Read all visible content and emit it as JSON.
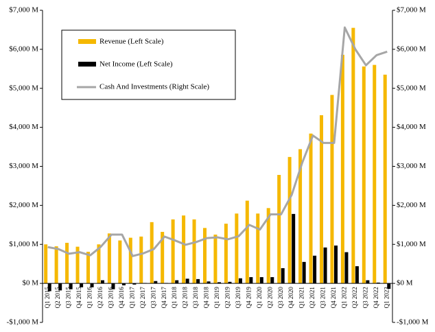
{
  "chart_data": {
    "type": "bar",
    "categories": [
      "Q1 2015",
      "Q2 2015",
      "Q3 2015",
      "Q4 2015",
      "Q1 2016",
      "Q2 2016",
      "Q3 2016",
      "Q4 2016",
      "Q1 2017",
      "Q2 2017",
      "Q3 2017",
      "Q4 2017",
      "Q1 2018",
      "Q2 2018",
      "Q3 2018",
      "Q4 2018",
      "Q1 2019",
      "Q2 2019",
      "Q3 2019",
      "Q4 2019",
      "Q1 2020",
      "Q2 2020",
      "Q3 2020",
      "Q4 2020",
      "Q1 2021",
      "Q2 2021",
      "Q3 2021",
      "Q4 2021",
      "Q1 2022",
      "Q2 2022",
      "Q3 2022",
      "Q4 2022",
      "Q1 2023"
    ],
    "series": [
      {
        "name": "Revenue (Left Scale)",
        "type": "bar",
        "color": "#f5b800",
        "values": [
          1000,
          950,
          1040,
          940,
          810,
          1000,
          1280,
          1100,
          1170,
          1200,
          1570,
          1320,
          1640,
          1740,
          1640,
          1420,
          1250,
          1530,
          1790,
          2120,
          1790,
          1930,
          2780,
          3240,
          3440,
          3840,
          4310,
          4830,
          5860,
          6550,
          5560,
          5600,
          5350
        ]
      },
      {
        "name": "Net Income (Left Scale)",
        "type": "bar",
        "color": "#000000",
        "values": [
          -200,
          -180,
          -150,
          -100,
          -100,
          80,
          -150,
          -50,
          -30,
          10,
          60,
          10,
          80,
          120,
          110,
          50,
          30,
          40,
          130,
          160,
          160,
          160,
          390,
          1780,
          550,
          710,
          920,
          970,
          800,
          440,
          80,
          20,
          -140
        ]
      },
      {
        "name": "Cash And Investments (Right Scale)",
        "type": "line",
        "axis": "y2",
        "color": "#a6a6a6",
        "values": [
          930,
          880,
          760,
          800,
          720,
          940,
          1250,
          1250,
          700,
          770,
          880,
          1200,
          1100,
          990,
          1060,
          1160,
          1180,
          1130,
          1210,
          1500,
          1380,
          1770,
          1770,
          2270,
          3100,
          3790,
          3600,
          3600,
          6560,
          6000,
          5590,
          5850,
          5940
        ]
      }
    ],
    "ylim": [
      -1000,
      7000
    ],
    "yticks": [
      {
        "value": -1000,
        "label": "-$1,000 M"
      },
      {
        "value": 0,
        "label": "$0 M"
      },
      {
        "value": 1000,
        "label": "$1,000 M"
      },
      {
        "value": 2000,
        "label": "$2,000 M"
      },
      {
        "value": 3000,
        "label": "$3,000 M"
      },
      {
        "value": 4000,
        "label": "$4,000 M"
      },
      {
        "value": 5000,
        "label": "$5,000 M"
      },
      {
        "value": 6000,
        "label": "$6,000 M"
      },
      {
        "value": 7000,
        "label": "$7,000 M"
      }
    ],
    "y2lim": [
      -1000,
      7000
    ],
    "y2ticks": [
      {
        "value": -1000,
        "label": "-$1,000 M"
      },
      {
        "value": 0,
        "label": "$0 M"
      },
      {
        "value": 1000,
        "label": "$1,000 M"
      },
      {
        "value": 2000,
        "label": "$2,000 M"
      },
      {
        "value": 3000,
        "label": "$3,000 M"
      },
      {
        "value": 4000,
        "label": "$4,000 M"
      },
      {
        "value": 5000,
        "label": "$5,000 M"
      },
      {
        "value": 6000,
        "label": "$6,000 M"
      },
      {
        "value": 7000,
        "label": "$7,000 M"
      }
    ],
    "legend": "upper left"
  }
}
